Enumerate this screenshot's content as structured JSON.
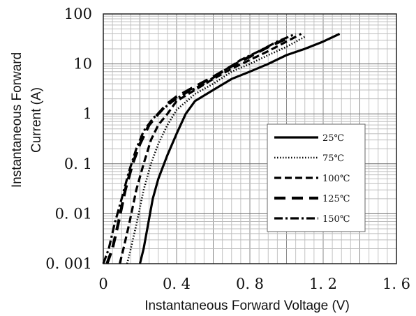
{
  "chart_data": {
    "type": "line",
    "xlabel": "Instantaneous Forward Voltage (V)",
    "ylabel": "Instantaneous Forward Current (A)",
    "ylabel_lines": [
      "Instantaneous Forward",
      "Current (A)"
    ],
    "xlim": [
      0,
      1.6
    ],
    "ylim": [
      0.001,
      100
    ],
    "yscale": "log",
    "grid": true,
    "legend_position": "lower-right",
    "x_ticks": [
      0,
      0.4,
      0.8,
      1.2,
      1.6
    ],
    "x_tick_labels": [
      "0",
      "0. 4",
      "0. 8",
      "1. 2",
      "1. 6"
    ],
    "y_ticks": [
      0.001,
      0.01,
      0.1,
      1,
      10,
      100
    ],
    "y_tick_labels": [
      "0. 001",
      "0. 01",
      "0. 1",
      "1",
      "10",
      "100"
    ],
    "series": [
      {
        "name": "25℃",
        "dash": "solid",
        "color": "#000000",
        "x": [
          0.2,
          0.22,
          0.24,
          0.27,
          0.3,
          0.35,
          0.4,
          0.45,
          0.5,
          0.6,
          0.7,
          0.8,
          0.9,
          1.0,
          1.1,
          1.2,
          1.29
        ],
        "y": [
          0.001,
          0.002,
          0.005,
          0.02,
          0.05,
          0.15,
          0.4,
          1.0,
          1.8,
          3.0,
          5.0,
          7.0,
          10.0,
          15.0,
          20.0,
          28.0,
          40.0
        ]
      },
      {
        "name": "75℃",
        "dash": "dotted",
        "color": "#000000",
        "x": [
          0.13,
          0.15,
          0.18,
          0.22,
          0.26,
          0.3,
          0.35,
          0.4,
          0.5,
          0.6,
          0.7,
          0.8,
          0.9,
          1.0,
          1.1
        ],
        "y": [
          0.001,
          0.002,
          0.006,
          0.03,
          0.1,
          0.25,
          0.6,
          1.2,
          2.5,
          4.0,
          7.0,
          10.0,
          15.0,
          22.0,
          35.0
        ]
      },
      {
        "name": "100℃",
        "dash": "dashed",
        "color": "#000000",
        "x": [
          0.09,
          0.11,
          0.14,
          0.18,
          0.22,
          0.26,
          0.3,
          0.35,
          0.4,
          0.5,
          0.6,
          0.7,
          0.8,
          0.9,
          1.0,
          1.08
        ],
        "y": [
          0.001,
          0.002,
          0.006,
          0.03,
          0.1,
          0.3,
          0.6,
          1.0,
          1.8,
          3.0,
          5.0,
          8.0,
          12.0,
          18.0,
          28.0,
          40.0
        ]
      },
      {
        "name": "125℃",
        "dash": "long-dash",
        "color": "#000000",
        "x": [
          0.02,
          0.05,
          0.08,
          0.12,
          0.16,
          0.2,
          0.25,
          0.3,
          0.35,
          0.4,
          0.5,
          0.6,
          0.7,
          0.8,
          0.9,
          1.0
        ],
        "y": [
          0.001,
          0.002,
          0.006,
          0.03,
          0.1,
          0.25,
          0.6,
          1.0,
          1.6,
          2.2,
          3.5,
          5.5,
          9.0,
          14.0,
          22.0,
          32.0
        ]
      },
      {
        "name": "150℃",
        "dash": "dash-dot",
        "color": "#000000",
        "x": [
          0.0,
          0.03,
          0.06,
          0.1,
          0.14,
          0.18,
          0.22,
          0.27,
          0.32,
          0.38,
          0.45,
          0.55,
          0.65,
          0.75,
          0.85,
          0.95,
          1.05
        ],
        "y": [
          0.001,
          0.002,
          0.006,
          0.02,
          0.07,
          0.2,
          0.45,
          0.8,
          1.2,
          1.8,
          2.6,
          4.0,
          7.0,
          12.0,
          18.0,
          28.0,
          40.0
        ]
      }
    ]
  }
}
